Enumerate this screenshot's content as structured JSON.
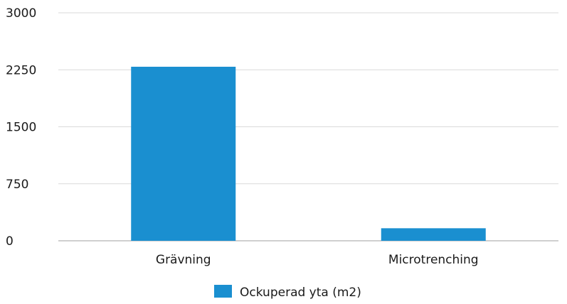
{
  "chart_data": {
    "type": "bar",
    "categories": [
      "Grävning",
      "Microtrenching"
    ],
    "series": [
      {
        "name": "Ockuperad yta (m2)",
        "values": [
          2290,
          165
        ]
      }
    ],
    "yticks": [
      "0",
      "750",
      "1500",
      "2250",
      "3000"
    ],
    "ylim": [
      0,
      3000
    ],
    "grid": true,
    "legend": "bottom",
    "colors": {
      "bar": "#1a8fd0",
      "grid": "#d9d9d9",
      "axis": "#bfbfbf"
    }
  }
}
